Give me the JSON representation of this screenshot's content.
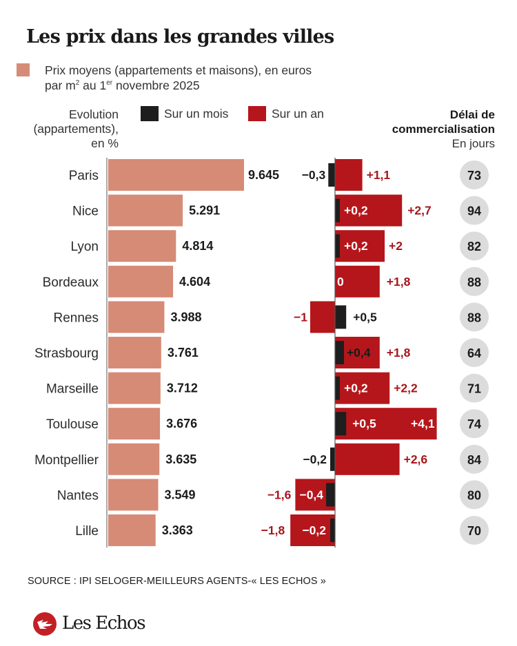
{
  "title": "Les prix dans les grandes villes",
  "legend": {
    "price_line1": "Prix moyens (appartements et maisons), en euros",
    "price_line2_a": "par m",
    "price_line2_sup1": "2",
    "price_line2_b": " au 1",
    "price_line2_sup2": "er",
    "price_line2_c": " novembre 2025",
    "evolution_line1": "Evolution",
    "evolution_line2": "(appartements),",
    "evolution_line3": "en %",
    "month_label": "Sur un mois",
    "year_label": "Sur un an",
    "delay_line1": "Délai de",
    "delay_line2": "commercialisation",
    "delay_line3": "En jours"
  },
  "colors": {
    "price": "#d68b76",
    "month": "#1e1e1e",
    "year": "#b5161b",
    "year_text": "#a8151a",
    "delay_circle": "#dcdcdc"
  },
  "source": "SOURCE : IPI SELOGER-MEILLEURS AGENTS-« LES ECHOS »",
  "logo_text": "Les Echos",
  "chart_data": {
    "type": "bar",
    "title": "Les prix dans les grandes villes",
    "categories": [
      "Paris",
      "Nice",
      "Lyon",
      "Bordeaux",
      "Rennes",
      "Strasbourg",
      "Marseille",
      "Toulouse",
      "Montpellier",
      "Nantes",
      "Lille"
    ],
    "series": [
      {
        "name": "Prix moyens (€/m²)",
        "values": [
          9645,
          5291,
          4814,
          4604,
          3988,
          3761,
          3712,
          3676,
          3635,
          3549,
          3363
        ],
        "labels": [
          "9.645",
          "5.291",
          "4.814",
          "4.604",
          "3.988",
          "3.761",
          "3.712",
          "3.676",
          "3.635",
          "3.549",
          "3.363"
        ]
      },
      {
        "name": "Sur un mois (%)",
        "values": [
          -0.3,
          0.2,
          0.2,
          0,
          0.5,
          0.4,
          0.2,
          0.5,
          -0.2,
          -0.4,
          -0.2
        ],
        "labels": [
          "−0,3",
          "+0,2",
          "+0,2",
          "0",
          "+0,5",
          "+0,4",
          "+0,2",
          "+0,5",
          "−0,2",
          "−0,4",
          "−0,2"
        ]
      },
      {
        "name": "Sur un an (%)",
        "values": [
          1.1,
          2.7,
          2,
          1.8,
          -1,
          1.8,
          2.2,
          4.1,
          2.6,
          -1.6,
          -1.8
        ],
        "labels": [
          "+1,1",
          "+2,7",
          "+2",
          "+1,8",
          "−1",
          "+1,8",
          "+2,2",
          "+4,1",
          "+2,6",
          "−1,6",
          "−1,8"
        ]
      },
      {
        "name": "Délai de commercialisation (jours)",
        "values": [
          73,
          94,
          82,
          88,
          88,
          64,
          71,
          74,
          84,
          80,
          70
        ]
      }
    ],
    "xlabel": "",
    "ylabel": "",
    "legend_position": "top"
  }
}
